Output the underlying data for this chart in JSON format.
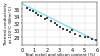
{
  "title": "",
  "xlabel": "Total nickel and silicon content (%)",
  "ylabel": "Thermal conductivity\nat 100°C (W/m°C)",
  "xlim": [
    0,
    6
  ],
  "ylim": [
    26,
    38
  ],
  "yticks": [
    28,
    30,
    32,
    34,
    36
  ],
  "xticks": [
    0,
    1,
    2,
    3,
    4,
    5,
    6
  ],
  "trend_line_x": [
    0,
    6
  ],
  "trend_line_y": [
    37.5,
    27.0
  ],
  "trend_color": "#66ddee",
  "trend_lw": 0.8,
  "scatter_points": [
    [
      0.4,
      36.2
    ],
    [
      0.6,
      35.8
    ],
    [
      0.9,
      35.4
    ],
    [
      1.1,
      35.0
    ],
    [
      1.3,
      34.4
    ],
    [
      1.5,
      34.0
    ],
    [
      1.8,
      33.2
    ],
    [
      2.0,
      33.6
    ],
    [
      2.3,
      32.5
    ],
    [
      2.6,
      32.0
    ],
    [
      2.8,
      31.5
    ],
    [
      3.0,
      31.0
    ],
    [
      3.3,
      30.5
    ],
    [
      3.6,
      30.0
    ],
    [
      3.8,
      29.5
    ],
    [
      4.0,
      30.0
    ],
    [
      4.2,
      29.0
    ],
    [
      4.6,
      28.5
    ],
    [
      5.0,
      28.2
    ],
    [
      5.3,
      28.0
    ],
    [
      5.6,
      27.5
    ],
    [
      5.9,
      27.3
    ]
  ],
  "scatter_color": "#444444",
  "scatter_marker": "s",
  "scatter_size": 2.5,
  "background_color": "#ffffff",
  "grid_color": "#cccccc",
  "tick_fontsize": 3.5,
  "label_fontsize": 3.0
}
